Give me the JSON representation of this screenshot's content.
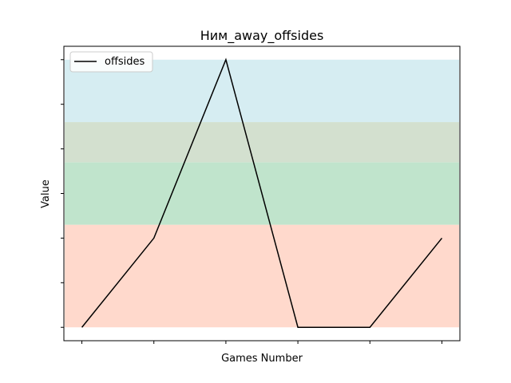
{
  "chart_data": {
    "type": "line",
    "title": "Ним_away_offsides",
    "xlabel": "Games Number",
    "ylabel": "Value",
    "x": [
      0,
      1,
      2,
      3,
      4,
      5
    ],
    "series": [
      {
        "name": "offsides",
        "values": [
          0,
          2,
          6,
          0,
          0,
          2
        ],
        "color": "#000000"
      }
    ],
    "xlim": [
      -0.25,
      5.25
    ],
    "ylim": [
      -0.3,
      6.3
    ],
    "xticks": [
      0,
      1,
      2,
      3,
      4,
      5
    ],
    "yticks": [
      0,
      1,
      2,
      3,
      4,
      5,
      6
    ],
    "tick_labels_shown": false,
    "grid": false,
    "legend_position": "top-left",
    "bands": [
      {
        "from": 0,
        "to": 2.3,
        "color": "#ffd9cc"
      },
      {
        "from": 2.3,
        "to": 3.7,
        "color": "#c0e4cc"
      },
      {
        "from": 3.7,
        "to": 4.6,
        "color": "#d3e0cf"
      },
      {
        "from": 4.6,
        "to": 6.0,
        "color": "#d6edf2"
      }
    ]
  }
}
